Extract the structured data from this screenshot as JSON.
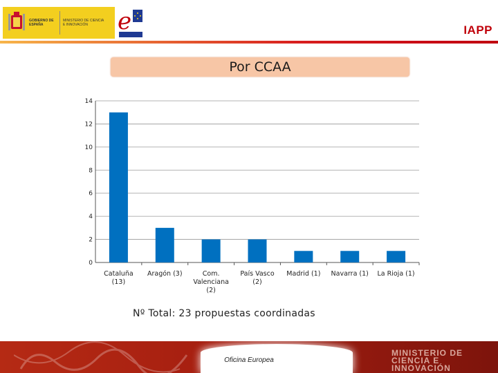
{
  "header": {
    "gov_text": "GOBIERNO DE ESPAÑA",
    "ministry_text": "MINISTERIO DE CIENCIA E INNOVACIÓN",
    "brand": "IAPP",
    "colors": {
      "brand": "#c0000a",
      "gov_yellow": "#f3cf1f"
    }
  },
  "title": "Por CCAA",
  "total_text": "Nº Total: 23 propuestas coordinadas",
  "footer": {
    "office": "Oficina Europea",
    "ministry": "MINISTERIO DE CIENCIA E INNOVACIÓN"
  },
  "chart_data": {
    "type": "bar",
    "categories": [
      "Cataluña (13)",
      "Aragón (3)",
      "Com. Valenciana (2)",
      "País Vasco (2)",
      "Madrid (1)",
      "Navarra (1)",
      "La Rioja (1)"
    ],
    "category_lines": [
      [
        "Cataluña",
        "(13)"
      ],
      [
        "Aragón (3)"
      ],
      [
        "Com.",
        "Valenciana",
        "(2)"
      ],
      [
        "País Vasco",
        "(2)"
      ],
      [
        "Madrid (1)"
      ],
      [
        "Navarra (1)"
      ],
      [
        "La Rioja (1)"
      ]
    ],
    "values": [
      13,
      3,
      2,
      2,
      1,
      1,
      1
    ],
    "ylim": [
      0,
      14
    ],
    "yticks": [
      0,
      2,
      4,
      6,
      8,
      10,
      12,
      14
    ],
    "grid": true,
    "bar_color": "#0070c0"
  }
}
